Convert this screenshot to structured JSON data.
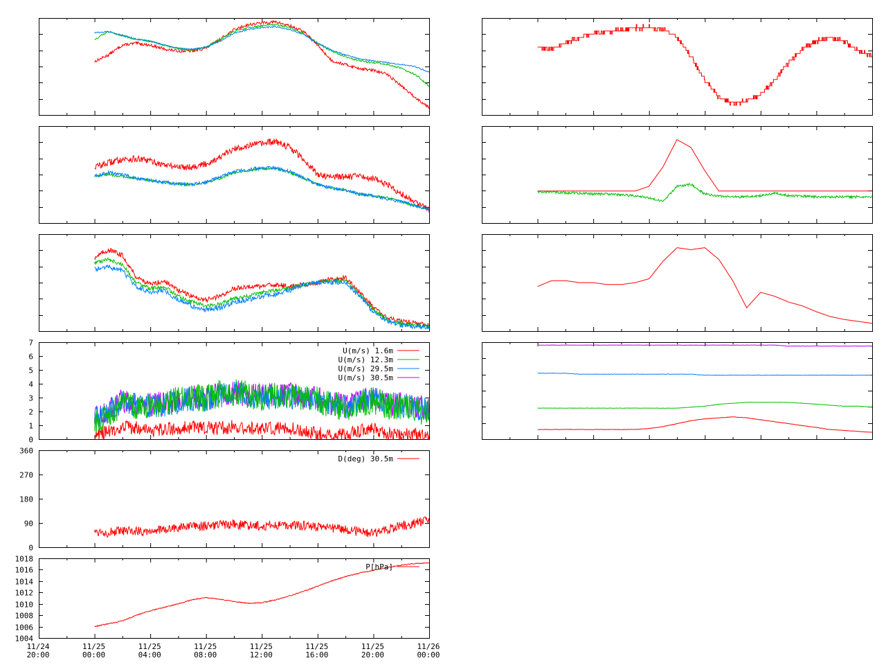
{
  "colors": {
    "red": "#ff0000",
    "green": "#00c000",
    "blue": "#0080ff",
    "purple": "#c000ff",
    "frame": "#000000",
    "background": "#ffffff"
  },
  "x_ticks": [
    "11/24\n20:00",
    "11/25\n00:00",
    "11/25\n04:00",
    "11/25\n08:00",
    "11/25\n12:00",
    "11/25\n16:00",
    "11/25\n20:00",
    "11/26\n00:00"
  ],
  "chart_data": [
    {
      "id": "left-1",
      "type": "line",
      "column": "left",
      "row": 0,
      "xlim": [
        "11/24 20:00",
        "11/26 00:00"
      ],
      "ylim": [
        0,
        1
      ],
      "show_y_labels": false,
      "x_hours": [
        0,
        1,
        2,
        3,
        4,
        5,
        6,
        7,
        8,
        9,
        10,
        11,
        12,
        13,
        14,
        15,
        16,
        17,
        18,
        19,
        20,
        21,
        22,
        23,
        24
      ],
      "series": [
        {
          "color": "red",
          "noise": 0.015,
          "values": [
            0.55,
            0.62,
            0.72,
            0.74,
            0.72,
            0.68,
            0.66,
            0.66,
            0.69,
            0.78,
            0.88,
            0.93,
            0.95,
            0.96,
            0.92,
            0.86,
            0.72,
            0.56,
            0.52,
            0.48,
            0.46,
            0.42,
            0.3,
            0.18,
            0.08
          ]
        },
        {
          "color": "green",
          "noise": 0.01,
          "values": [
            0.78,
            0.86,
            0.82,
            0.78,
            0.76,
            0.72,
            0.68,
            0.67,
            0.7,
            0.78,
            0.86,
            0.9,
            0.92,
            0.93,
            0.9,
            0.84,
            0.74,
            0.66,
            0.6,
            0.56,
            0.54,
            0.52,
            0.48,
            0.42,
            0.3
          ]
        },
        {
          "color": "blue",
          "noise": 0.006,
          "values": [
            0.85,
            0.86,
            0.82,
            0.78,
            0.76,
            0.72,
            0.69,
            0.68,
            0.7,
            0.76,
            0.84,
            0.88,
            0.9,
            0.91,
            0.88,
            0.83,
            0.74,
            0.67,
            0.62,
            0.58,
            0.56,
            0.54,
            0.52,
            0.5,
            0.44
          ]
        }
      ]
    },
    {
      "id": "left-2",
      "type": "line",
      "column": "left",
      "row": 1,
      "xlim": [
        "11/24 20:00",
        "11/26 00:00"
      ],
      "ylim": [
        0,
        1
      ],
      "show_y_labels": false,
      "x_hours": [
        0,
        1,
        2,
        3,
        4,
        5,
        6,
        7,
        8,
        9,
        10,
        11,
        12,
        13,
        14,
        15,
        16,
        17,
        18,
        19,
        20,
        21,
        22,
        23,
        24
      ],
      "series": [
        {
          "color": "red",
          "noise": 0.035,
          "values": [
            0.58,
            0.62,
            0.66,
            0.66,
            0.64,
            0.6,
            0.58,
            0.58,
            0.61,
            0.68,
            0.76,
            0.8,
            0.82,
            0.84,
            0.78,
            0.66,
            0.5,
            0.48,
            0.48,
            0.48,
            0.46,
            0.4,
            0.3,
            0.22,
            0.14
          ]
        },
        {
          "color": "green",
          "noise": 0.012,
          "values": [
            0.48,
            0.5,
            0.48,
            0.46,
            0.44,
            0.42,
            0.4,
            0.4,
            0.42,
            0.46,
            0.52,
            0.54,
            0.56,
            0.56,
            0.52,
            0.46,
            0.4,
            0.36,
            0.34,
            0.3,
            0.28,
            0.26,
            0.22,
            0.18,
            0.14
          ]
        },
        {
          "color": "blue",
          "noise": 0.018,
          "values": [
            0.48,
            0.52,
            0.5,
            0.46,
            0.44,
            0.42,
            0.4,
            0.4,
            0.42,
            0.48,
            0.53,
            0.55,
            0.57,
            0.57,
            0.53,
            0.47,
            0.4,
            0.36,
            0.34,
            0.3,
            0.28,
            0.25,
            0.22,
            0.18,
            0.14
          ]
        }
      ]
    },
    {
      "id": "left-3",
      "type": "line",
      "column": "left",
      "row": 2,
      "xlim": [
        "11/24 20:00",
        "11/26 00:00"
      ],
      "ylim": [
        0,
        1
      ],
      "show_y_labels": false,
      "x_hours": [
        0,
        1,
        2,
        3,
        4,
        5,
        6,
        7,
        8,
        9,
        10,
        11,
        12,
        13,
        14,
        15,
        16,
        17,
        18,
        19,
        20,
        21,
        22,
        23,
        24
      ],
      "series": [
        {
          "color": "red",
          "noise": 0.025,
          "values": [
            0.76,
            0.84,
            0.78,
            0.56,
            0.48,
            0.52,
            0.42,
            0.36,
            0.32,
            0.36,
            0.44,
            0.46,
            0.46,
            0.48,
            0.46,
            0.48,
            0.5,
            0.54,
            0.55,
            0.4,
            0.24,
            0.14,
            0.1,
            0.08,
            0.06
          ]
        },
        {
          "color": "green",
          "noise": 0.02,
          "values": [
            0.7,
            0.74,
            0.68,
            0.5,
            0.44,
            0.46,
            0.36,
            0.3,
            0.26,
            0.28,
            0.34,
            0.36,
            0.4,
            0.42,
            0.44,
            0.48,
            0.5,
            0.52,
            0.52,
            0.38,
            0.22,
            0.12,
            0.08,
            0.06,
            0.05
          ]
        },
        {
          "color": "blue",
          "noise": 0.025,
          "values": [
            0.64,
            0.66,
            0.62,
            0.46,
            0.4,
            0.42,
            0.32,
            0.26,
            0.22,
            0.24,
            0.3,
            0.32,
            0.36,
            0.38,
            0.42,
            0.48,
            0.5,
            0.5,
            0.5,
            0.36,
            0.2,
            0.1,
            0.06,
            0.05,
            0.04
          ]
        }
      ]
    },
    {
      "id": "wind-speed",
      "type": "line",
      "column": "left",
      "row": 3,
      "xlim": [
        "11/24 20:00",
        "11/26 00:00"
      ],
      "ylim": [
        0,
        7
      ],
      "show_y_labels": true,
      "y_ticks": [
        0,
        1,
        2,
        3,
        4,
        5,
        6,
        7
      ],
      "legend_position": "top-right",
      "legend": [
        "U(m/s)  1.6m",
        "U(m/s) 12.3m",
        "U(m/s) 29.5m",
        "U(m/s) 30.5m"
      ],
      "x_hours": [
        0,
        1,
        2,
        3,
        4,
        5,
        6,
        7,
        8,
        9,
        10,
        11,
        12,
        13,
        14,
        15,
        16,
        17,
        18,
        19,
        20,
        21,
        22,
        23,
        24
      ],
      "series": [
        {
          "name": "U(m/s) 30.5m",
          "color": "purple",
          "noise": 0.9,
          "values": [
            1.4,
            2.0,
            2.8,
            2.6,
            2.5,
            2.6,
            2.8,
            3.0,
            3.0,
            3.2,
            3.4,
            3.2,
            3.1,
            3.2,
            3.2,
            3.0,
            2.9,
            2.6,
            2.4,
            2.8,
            3.0,
            2.6,
            2.5,
            2.4,
            2.2
          ]
        },
        {
          "name": "U(m/s) 29.5m",
          "color": "blue",
          "noise": 0.9,
          "values": [
            1.4,
            2.0,
            2.7,
            2.5,
            2.4,
            2.5,
            2.7,
            2.9,
            2.9,
            3.1,
            3.3,
            3.1,
            3.0,
            3.1,
            3.1,
            2.9,
            2.8,
            2.5,
            2.3,
            2.7,
            2.9,
            2.5,
            2.4,
            2.3,
            2.1
          ]
        },
        {
          "name": "U(m/s) 12.3m",
          "color": "green",
          "noise": 1.0,
          "values": [
            1.0,
            1.8,
            2.6,
            2.4,
            2.3,
            2.6,
            2.8,
            2.9,
            3.0,
            3.3,
            3.4,
            3.2,
            3.0,
            3.1,
            3.2,
            3.0,
            2.8,
            2.5,
            2.2,
            2.6,
            2.8,
            2.4,
            2.3,
            2.1,
            2.0
          ]
        },
        {
          "name": "U(m/s)  1.6m",
          "color": "red",
          "noise": 0.5,
          "values": [
            0.3,
            0.6,
            0.9,
            0.8,
            0.6,
            0.7,
            0.8,
            0.9,
            0.8,
            0.8,
            0.9,
            0.8,
            0.7,
            0.8,
            0.8,
            0.6,
            0.4,
            0.3,
            0.3,
            0.6,
            0.8,
            0.4,
            0.3,
            0.3,
            0.2
          ]
        }
      ]
    },
    {
      "id": "wind-direction",
      "type": "line",
      "column": "left",
      "row": 4,
      "xlim": [
        "11/24 20:00",
        "11/26 00:00"
      ],
      "ylim": [
        0,
        360
      ],
      "show_y_labels": true,
      "y_ticks": [
        0,
        90,
        180,
        270,
        360
      ],
      "legend_position": "top-right",
      "legend": [
        "D(deg)  30.5m"
      ],
      "x_hours": [
        0,
        1,
        2,
        3,
        4,
        5,
        6,
        7,
        8,
        9,
        10,
        11,
        12,
        13,
        14,
        15,
        16,
        17,
        18,
        19,
        20,
        21,
        22,
        23,
        24
      ],
      "series": [
        {
          "name": "D(deg)  30.5m",
          "color": "red",
          "noise": 18,
          "values": [
            60,
            55,
            58,
            60,
            62,
            66,
            72,
            76,
            80,
            82,
            84,
            82,
            80,
            82,
            84,
            80,
            76,
            72,
            64,
            58,
            52,
            66,
            80,
            90,
            100
          ]
        }
      ]
    },
    {
      "id": "pressure",
      "type": "line",
      "column": "left",
      "row": 5,
      "xlim": [
        "11/24 20:00",
        "11/26 00:00"
      ],
      "ylim": [
        1004,
        1018
      ],
      "show_y_labels": true,
      "y_ticks": [
        1004,
        1006,
        1008,
        1010,
        1012,
        1014,
        1016,
        1018
      ],
      "legend_position": "top-right",
      "legend": [
        "P[hPa]"
      ],
      "x_hours": [
        0,
        1,
        2,
        3,
        4,
        5,
        6,
        7,
        8,
        9,
        10,
        11,
        12,
        13,
        14,
        15,
        16,
        17,
        18,
        19,
        20,
        21,
        22,
        23,
        24
      ],
      "series": [
        {
          "name": "P[hPa]",
          "color": "red",
          "noise": 0.08,
          "values": [
            1006.0,
            1006.5,
            1007.0,
            1008.0,
            1008.8,
            1009.4,
            1010.0,
            1010.7,
            1011.1,
            1010.8,
            1010.4,
            1010.1,
            1010.2,
            1010.7,
            1011.4,
            1012.2,
            1013.1,
            1014.0,
            1014.8,
            1015.4,
            1015.9,
            1016.4,
            1016.8,
            1017.1,
            1017.2
          ]
        }
      ]
    },
    {
      "id": "right-1",
      "type": "line",
      "column": "right",
      "row": 0,
      "xlim": [
        "11/24 20:00",
        "11/26 00:00"
      ],
      "ylim": [
        0,
        1
      ],
      "show_y_labels": false,
      "stepped": true,
      "x_hours": [
        0,
        1,
        2,
        3,
        4,
        5,
        6,
        7,
        8,
        9,
        10,
        11,
        12,
        13,
        14,
        15,
        16,
        17,
        18,
        19,
        20,
        21,
        22,
        23,
        24
      ],
      "series": [
        {
          "color": "red",
          "noise": 0.02,
          "values": [
            0.7,
            0.68,
            0.74,
            0.8,
            0.84,
            0.86,
            0.88,
            0.9,
            0.9,
            0.88,
            0.8,
            0.6,
            0.36,
            0.18,
            0.12,
            0.14,
            0.22,
            0.36,
            0.54,
            0.68,
            0.76,
            0.8,
            0.76,
            0.66,
            0.6
          ]
        }
      ]
    },
    {
      "id": "right-2",
      "type": "line",
      "column": "right",
      "row": 1,
      "xlim": [
        "11/24 20:00",
        "11/26 00:00"
      ],
      "ylim": [
        0,
        1
      ],
      "show_y_labels": false,
      "x_hours": [
        0,
        1,
        2,
        3,
        4,
        5,
        6,
        7,
        8,
        9,
        10,
        11,
        12,
        13,
        14,
        15,
        16,
        17,
        18,
        19,
        20,
        21,
        22,
        23,
        24
      ],
      "series": [
        {
          "color": "red",
          "noise": 0.0,
          "values": [
            0.33,
            0.33,
            0.33,
            0.33,
            0.33,
            0.33,
            0.33,
            0.33,
            0.38,
            0.58,
            0.86,
            0.78,
            0.54,
            0.33,
            0.33,
            0.33,
            0.33,
            0.33,
            0.33,
            0.33,
            0.33,
            0.33,
            0.33,
            0.33,
            0.33
          ]
        },
        {
          "color": "green",
          "noise": 0.012,
          "values": [
            0.32,
            0.32,
            0.31,
            0.31,
            0.3,
            0.3,
            0.29,
            0.28,
            0.26,
            0.22,
            0.38,
            0.4,
            0.3,
            0.28,
            0.27,
            0.27,
            0.28,
            0.31,
            0.28,
            0.28,
            0.27,
            0.27,
            0.27,
            0.27,
            0.27
          ]
        }
      ]
    },
    {
      "id": "right-3",
      "type": "line",
      "column": "right",
      "row": 2,
      "xlim": [
        "11/24 20:00",
        "11/26 00:00"
      ],
      "ylim": [
        0,
        1
      ],
      "show_y_labels": false,
      "x_hours": [
        0,
        1,
        2,
        3,
        4,
        5,
        6,
        7,
        8,
        9,
        10,
        11,
        12,
        13,
        14,
        15,
        16,
        17,
        18,
        19,
        20,
        21,
        22,
        23,
        24
      ],
      "series": [
        {
          "color": "red",
          "noise": 0.0,
          "values": [
            0.46,
            0.52,
            0.52,
            0.5,
            0.5,
            0.48,
            0.48,
            0.5,
            0.54,
            0.72,
            0.86,
            0.84,
            0.86,
            0.74,
            0.52,
            0.24,
            0.4,
            0.36,
            0.3,
            0.26,
            0.2,
            0.15,
            0.12,
            0.1,
            0.08
          ]
        }
      ]
    },
    {
      "id": "right-4",
      "type": "line",
      "column": "right",
      "row": 3,
      "xlim": [
        "11/24 20:00",
        "11/26 00:00"
      ],
      "ylim": [
        0,
        1
      ],
      "show_y_labels": false,
      "x_hours": [
        0,
        1,
        2,
        3,
        4,
        5,
        6,
        7,
        8,
        9,
        10,
        11,
        12,
        13,
        14,
        15,
        16,
        17,
        18,
        19,
        20,
        21,
        22,
        23,
        24
      ],
      "series": [
        {
          "color": "purple",
          "noise": 0.002,
          "values": [
            0.97,
            0.97,
            0.97,
            0.97,
            0.97,
            0.97,
            0.97,
            0.97,
            0.97,
            0.97,
            0.97,
            0.97,
            0.97,
            0.97,
            0.97,
            0.97,
            0.97,
            0.97,
            0.96,
            0.96,
            0.96,
            0.96,
            0.96,
            0.96,
            0.96
          ]
        },
        {
          "color": "blue",
          "noise": 0.002,
          "values": [
            0.68,
            0.68,
            0.68,
            0.67,
            0.67,
            0.67,
            0.67,
            0.67,
            0.67,
            0.67,
            0.67,
            0.67,
            0.66,
            0.66,
            0.66,
            0.66,
            0.66,
            0.66,
            0.66,
            0.66,
            0.66,
            0.66,
            0.66,
            0.66,
            0.66
          ]
        },
        {
          "color": "green",
          "noise": 0.002,
          "values": [
            0.32,
            0.32,
            0.32,
            0.32,
            0.32,
            0.32,
            0.32,
            0.32,
            0.32,
            0.32,
            0.32,
            0.33,
            0.34,
            0.36,
            0.37,
            0.38,
            0.38,
            0.38,
            0.38,
            0.37,
            0.36,
            0.35,
            0.34,
            0.34,
            0.33
          ]
        },
        {
          "color": "red",
          "noise": 0.002,
          "values": [
            0.1,
            0.1,
            0.1,
            0.1,
            0.1,
            0.1,
            0.1,
            0.1,
            0.11,
            0.13,
            0.16,
            0.19,
            0.21,
            0.22,
            0.23,
            0.22,
            0.2,
            0.18,
            0.16,
            0.14,
            0.12,
            0.1,
            0.09,
            0.08,
            0.07
          ]
        }
      ]
    }
  ]
}
